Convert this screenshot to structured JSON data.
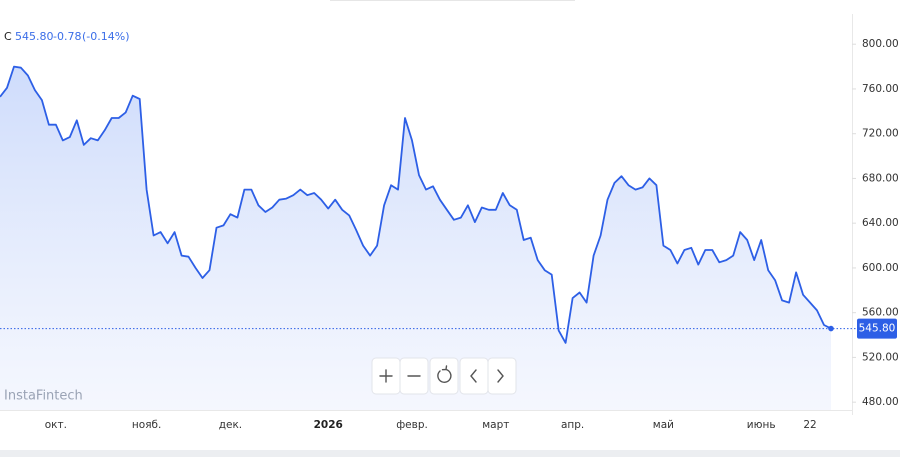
{
  "chart_data": {
    "type": "area",
    "header": {
      "symbol": "C",
      "price": "545.80",
      "change": "-0.78",
      "change_pct": "(-0.14%)"
    },
    "watermark": "InstaFintech",
    "color": "#2d5fe6",
    "categories": [
      null,
      null,
      null,
      null,
      null,
      null,
      null,
      null,
      "окт.",
      null,
      null,
      null,
      null,
      null,
      null,
      null,
      null,
      null,
      null,
      null,
      null,
      "нояб.",
      null,
      null,
      null,
      null,
      null,
      null,
      null,
      null,
      null,
      null,
      null,
      "дек.",
      null,
      null,
      null,
      null,
      null,
      null,
      null,
      null,
      null,
      null,
      null,
      null,
      null,
      "2026",
      null,
      null,
      null,
      null,
      null,
      null,
      null,
      null,
      null,
      null,
      null,
      "февр.",
      null,
      null,
      null,
      null,
      null,
      null,
      null,
      null,
      null,
      null,
      null,
      "март",
      null,
      null,
      null,
      null,
      null,
      null,
      null,
      null,
      null,
      null,
      "апр.",
      null,
      null,
      null,
      null,
      null,
      null,
      null,
      null,
      null,
      null,
      null,
      null,
      "май",
      null,
      null,
      null,
      null,
      null,
      null,
      null,
      null,
      null,
      null,
      null,
      null,
      null,
      "июнь",
      null,
      null,
      null,
      null,
      null,
      null,
      "22",
      null,
      null,
      null
    ],
    "values": [
      753,
      761,
      780,
      779,
      772,
      759,
      750,
      728,
      728,
      714,
      717,
      732,
      710,
      716,
      714,
      723,
      734,
      734,
      739,
      754,
      751,
      670,
      629,
      632,
      622,
      632,
      611,
      610,
      600,
      591,
      598,
      636,
      638,
      648,
      645,
      670,
      670,
      656,
      650,
      654,
      661,
      662,
      665,
      670,
      665,
      667,
      661,
      653,
      661,
      652,
      647,
      634,
      620,
      611,
      620,
      656,
      674,
      670,
      734,
      714,
      683,
      670,
      673,
      661,
      652,
      643,
      645,
      656,
      641,
      654,
      652,
      652,
      667,
      656,
      652,
      625,
      627,
      607,
      598,
      594,
      544,
      533,
      573,
      578,
      569,
      611,
      629,
      661,
      676,
      682,
      674,
      670,
      672,
      680,
      674,
      620,
      616,
      604,
      616,
      618,
      603,
      616,
      616,
      605,
      607,
      611,
      632,
      625,
      607,
      625,
      598,
      589,
      571,
      569,
      596,
      576,
      569,
      562,
      549,
      545.8
    ],
    "ylim": [
      473,
      827
    ],
    "yticks": [
      {
        "value": 480,
        "label": "480.00"
      },
      {
        "value": 520,
        "label": "520.00"
      },
      {
        "value": 560,
        "label": "560.00"
      },
      {
        "value": 600,
        "label": "600.00"
      },
      {
        "value": 640,
        "label": "640.00"
      },
      {
        "value": 680,
        "label": "680.00"
      },
      {
        "value": 720,
        "label": "720.00"
      },
      {
        "value": 760,
        "label": "760.00"
      },
      {
        "value": 800,
        "label": "800.00"
      }
    ],
    "grid": false
  }
}
